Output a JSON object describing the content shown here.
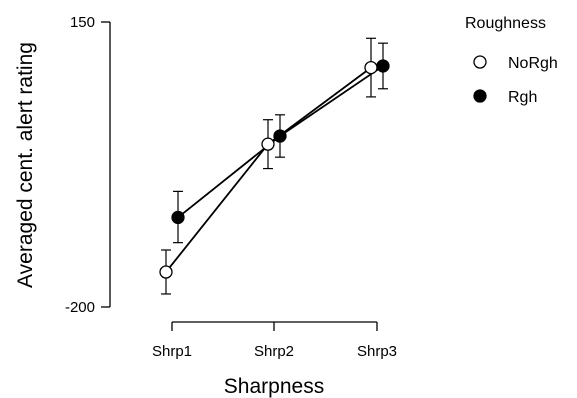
{
  "chart_data": {
    "type": "line",
    "title": "",
    "xlabel": "Sharpness",
    "ylabel": "Averaged cent. alert rating",
    "categories": [
      "Shrp1",
      "Shrp2",
      "Shrp3"
    ],
    "ylim": [
      -200,
      150
    ],
    "yticks": [
      "150",
      "-200"
    ],
    "legend": {
      "title": "Roughness",
      "placement": "top-right"
    },
    "grid": false,
    "series": [
      {
        "name": "NoRgh",
        "marker": "open-circle",
        "values": [
          -157,
          0,
          94
        ],
        "error_lower": [
          -184,
          -30,
          58
        ],
        "error_upper": [
          -130,
          30,
          130
        ]
      },
      {
        "name": "Rgh",
        "marker": "filled-circle",
        "values": [
          -90,
          10,
          96
        ],
        "error_lower": [
          -121,
          -16,
          68
        ],
        "error_upper": [
          -58,
          36,
          124
        ]
      }
    ]
  }
}
